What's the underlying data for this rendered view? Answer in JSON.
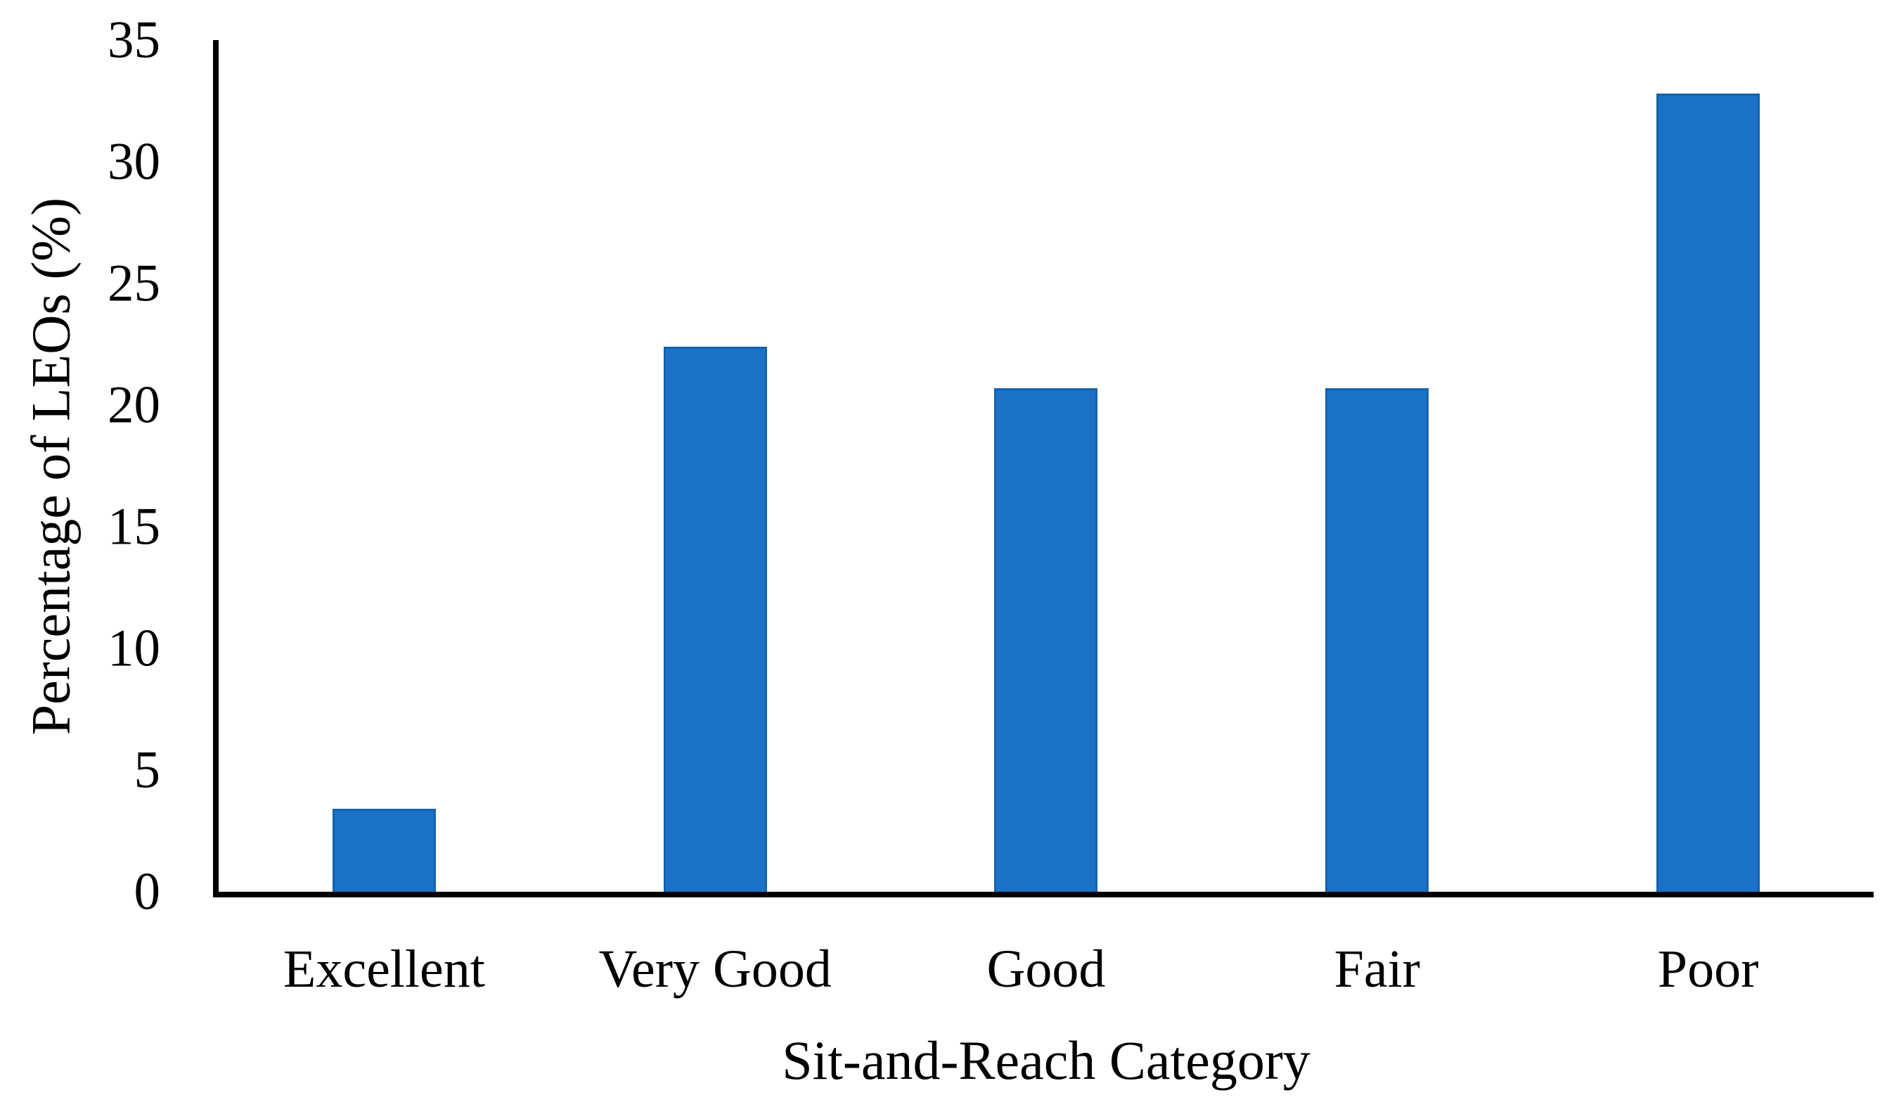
{
  "figure": {
    "background": "#ffffff"
  },
  "chart_data": {
    "type": "bar",
    "title": "",
    "categories": [
      "Excellent",
      "Very Good",
      "Good",
      "Fair",
      "Poor"
    ],
    "values": [
      3.4,
      22.4,
      20.7,
      20.7,
      32.8
    ],
    "xlabel": "Sit-and-Reach Category",
    "ylabel": "Percentage of LEOs (%)",
    "ylim": [
      0,
      35
    ],
    "yticks": [
      0,
      5,
      10,
      15,
      20,
      25,
      30,
      35
    ],
    "ytick_step": 5,
    "grid": false,
    "legend": null,
    "bar_color": "#1b72c8",
    "bar_edge_color": "#1463ae",
    "axis_color": "#000000",
    "text_color": "#000000"
  }
}
